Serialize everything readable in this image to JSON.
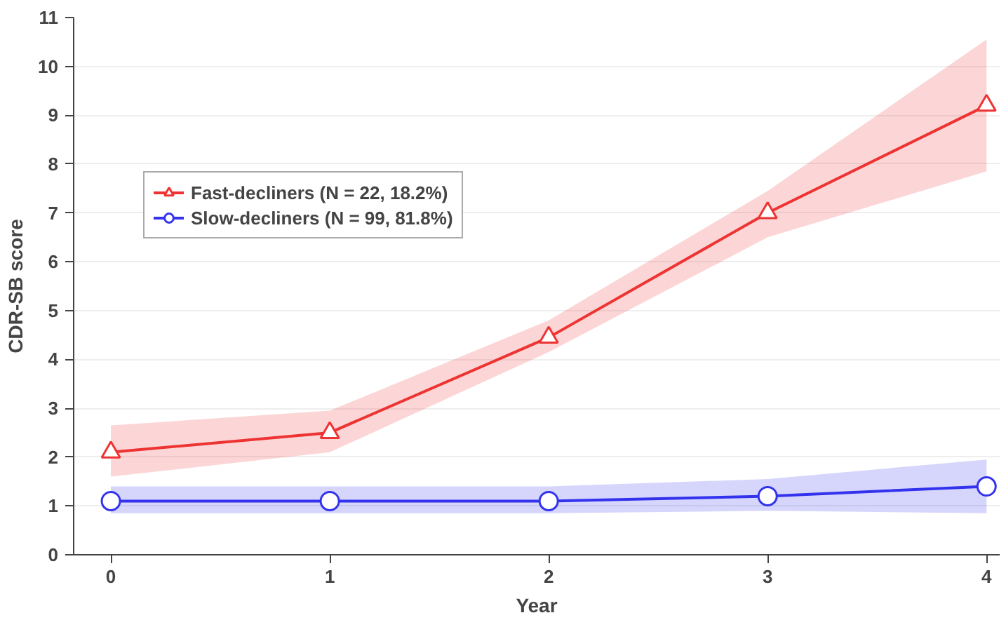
{
  "chart_data": {
    "type": "line",
    "xlabel": "Year",
    "ylabel": "CDR-SB score",
    "x": [
      0,
      1,
      2,
      3,
      4
    ],
    "xlim": [
      -0.17,
      4.06
    ],
    "xticks": [
      0,
      1,
      2,
      3,
      4
    ],
    "ylim": [
      0,
      11
    ],
    "yticks": [
      0,
      1,
      2,
      3,
      4,
      5,
      6,
      7,
      8,
      9,
      10,
      11
    ],
    "grid": "y",
    "legend": "top left",
    "line_style": "solid",
    "series": [
      {
        "name": "Fast-decliners (N = 22, 18.2%)",
        "color": "#ee3333",
        "marker": "triangle",
        "values": [
          2.1,
          2.5,
          4.45,
          7.0,
          9.2
        ],
        "lower": [
          1.6,
          2.1,
          4.15,
          6.5,
          7.85
        ],
        "upper": [
          2.65,
          2.95,
          4.8,
          7.45,
          10.55
        ]
      },
      {
        "name": "Slow-decliners (N = 99, 81.8%)",
        "color": "#3333ee",
        "marker": "circle",
        "values": [
          1.1,
          1.1,
          1.1,
          1.2,
          1.4
        ],
        "lower": [
          0.85,
          0.85,
          0.85,
          0.9,
          0.85
        ],
        "upper": [
          1.4,
          1.4,
          1.4,
          1.55,
          1.95
        ]
      }
    ]
  }
}
